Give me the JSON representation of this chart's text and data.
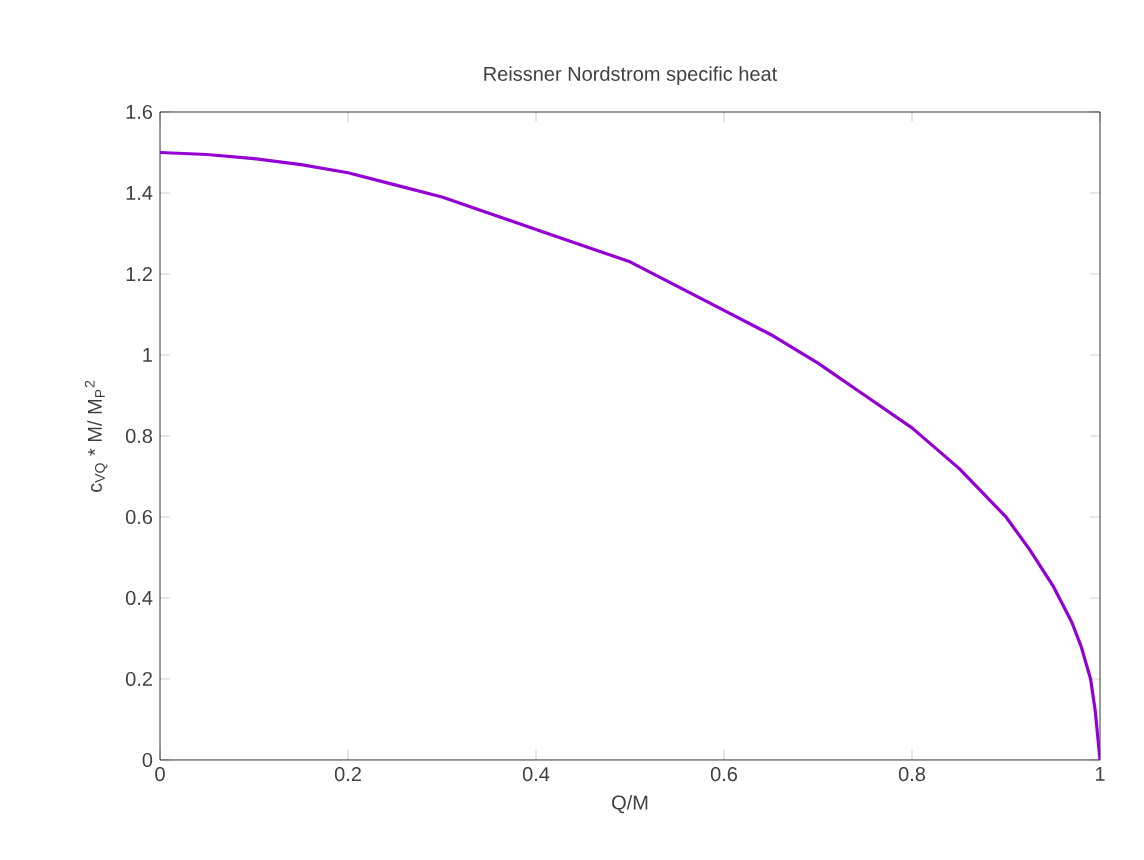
{
  "chart_data": {
    "type": "line",
    "title": "Reissner Nordstrom specific heat",
    "xlabel": "Q/M",
    "ylabel": "c$_{VQ}$ * M/ M$_{P}$$^{2}$",
    "xlim": [
      0,
      1
    ],
    "ylim": [
      0,
      1.6
    ],
    "xticks": [
      0,
      0.2,
      0.4,
      0.6,
      0.8,
      1
    ],
    "yticks": [
      0,
      0.2,
      0.4,
      0.6,
      0.8,
      1,
      1.2,
      1.4,
      1.6
    ],
    "grid": false,
    "marker": "none",
    "line_style": "solid",
    "series": [
      {
        "color": "#9400d3",
        "x": [
          0,
          0.05,
          0.1,
          0.15,
          0.2,
          0.25,
          0.3,
          0.35,
          0.4,
          0.45,
          0.5,
          0.55,
          0.6,
          0.65,
          0.7,
          0.75,
          0.8,
          0.85,
          0.875,
          0.9,
          0.925,
          0.95,
          0.97,
          0.98,
          0.99,
          0.995,
          1
        ],
        "values": [
          1.5,
          1.495,
          1.485,
          1.47,
          1.45,
          1.42,
          1.39,
          1.35,
          1.31,
          1.27,
          1.23,
          1.17,
          1.11,
          1.05,
          0.98,
          0.9,
          0.82,
          0.72,
          0.66,
          0.6,
          0.52,
          0.43,
          0.34,
          0.28,
          0.2,
          0.12,
          0
        ]
      }
    ]
  }
}
